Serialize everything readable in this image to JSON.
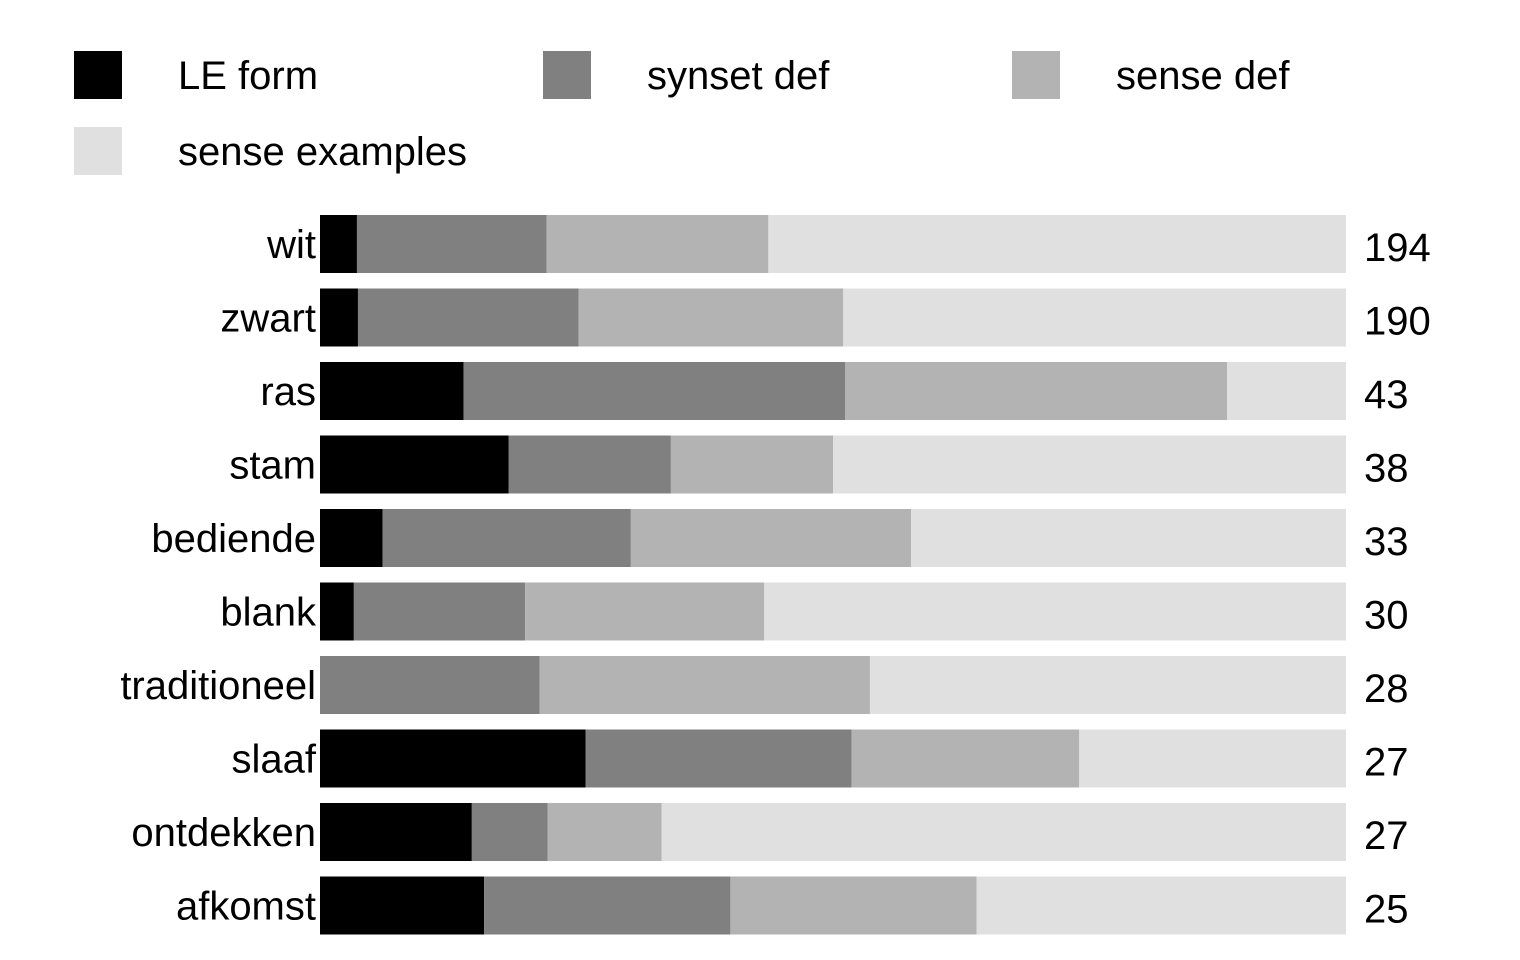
{
  "chart_data": {
    "type": "bar",
    "orientation": "horizontal",
    "stacked": true,
    "normalized": true,
    "legend": {
      "placement": "top",
      "items": [
        {
          "name": "LE form",
          "color": "#000000"
        },
        {
          "name": "synset def",
          "color": "#808080"
        },
        {
          "name": "sense def",
          "color": "#b3b3b3"
        },
        {
          "name": "sense examples",
          "color": "#e0e0e0"
        }
      ]
    },
    "categories": [
      "wit",
      "zwart",
      "ras",
      "stam",
      "bediende",
      "blank",
      "traditioneel",
      "slaaf",
      "ontdekken",
      "afkomst"
    ],
    "totals": [
      "194",
      "190",
      "43",
      "38",
      "33",
      "30",
      "28",
      "27",
      "27",
      "25"
    ],
    "series": [
      {
        "name": "LE form",
        "color": "#000000",
        "values": [
          0.036,
          0.037,
          0.14,
          0.184,
          0.061,
          0.033,
          0.0,
          0.259,
          0.148,
          0.16
        ]
      },
      {
        "name": "synset def",
        "color": "#808080",
        "values": [
          0.185,
          0.215,
          0.372,
          0.158,
          0.242,
          0.167,
          0.214,
          0.259,
          0.074,
          0.24
        ]
      },
      {
        "name": "sense def",
        "color": "#b3b3b3",
        "values": [
          0.216,
          0.258,
          0.372,
          0.158,
          0.273,
          0.233,
          0.322,
          0.222,
          0.111,
          0.24
        ]
      },
      {
        "name": "sense examples",
        "color": "#e0e0e0",
        "values": [
          0.563,
          0.49,
          0.116,
          0.5,
          0.424,
          0.567,
          0.464,
          0.26,
          0.667,
          0.36
        ]
      }
    ],
    "xlim": [
      0,
      1
    ],
    "grid": false,
    "title": "",
    "xlabel": "",
    "ylabel": ""
  }
}
